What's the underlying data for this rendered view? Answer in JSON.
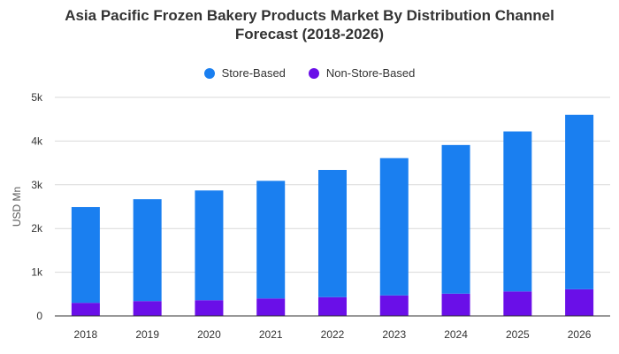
{
  "chart_data": {
    "type": "bar",
    "stacked": true,
    "title": "Asia Pacific Frozen Bakery Products Market By Distribution Channel",
    "subtitle": "Forecast (2018-2026)",
    "ylabel": "USD Mn",
    "xlabel": "",
    "ylim": [
      0,
      5000
    ],
    "yticks": [
      0,
      1000,
      2000,
      3000,
      4000,
      5000
    ],
    "ytick_labels": [
      "0",
      "1k",
      "2k",
      "3k",
      "4k",
      "5k"
    ],
    "grid": true,
    "legend_position": "top-center",
    "categories": [
      "2018",
      "2019",
      "2020",
      "2021",
      "2022",
      "2023",
      "2024",
      "2025",
      "2026"
    ],
    "series": [
      {
        "name": "Non-Store-Based",
        "color": "#6a0fe8",
        "values": [
          300,
          340,
          360,
          400,
          430,
          470,
          510,
          560,
          610
        ]
      },
      {
        "name": "Store-Based",
        "color": "#1a7ff0",
        "values": [
          2190,
          2330,
          2510,
          2690,
          2910,
          3140,
          3400,
          3660,
          3990
        ]
      }
    ]
  },
  "legend": [
    {
      "label": "Store-Based",
      "color": "#1a7ff0"
    },
    {
      "label": "Non-Store-Based",
      "color": "#6a0fe8"
    }
  ]
}
